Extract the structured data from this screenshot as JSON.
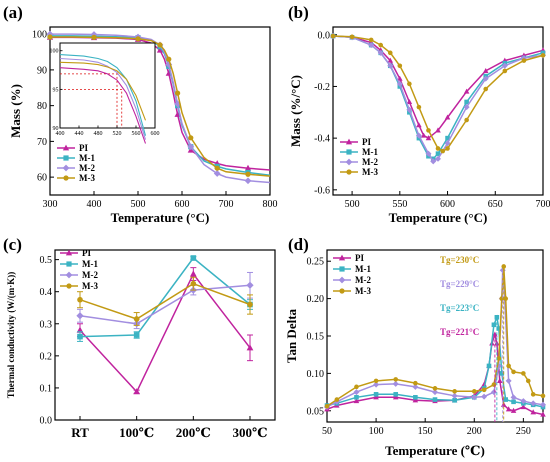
{
  "colors": {
    "PI": "#c0239e",
    "M-1": "#3bb3c3",
    "M-2": "#a28ee0",
    "M-3": "#c29a14"
  },
  "chart_data": [
    {
      "label": "(a)",
      "type": "line",
      "xlabel": "Temperature (°C)",
      "ylabel": "Mass (%)",
      "xlim": [
        300,
        800
      ],
      "ylim": [
        55,
        102
      ],
      "xticks": [
        "300",
        "400",
        "500",
        "600",
        "700",
        "800"
      ],
      "yticks": [
        "60",
        "70",
        "80",
        "90",
        "100"
      ],
      "legend": [
        "PI",
        "M-1",
        "M-2",
        "M-3"
      ],
      "legend_position": "bottom-left",
      "series": [
        {
          "name": "PI",
          "x": [
            300,
            350,
            400,
            450,
            500,
            530,
            550,
            560,
            570,
            580,
            590,
            600,
            620,
            650,
            680,
            700,
            750,
            800
          ],
          "y": [
            99.1,
            99.1,
            99.0,
            98.9,
            98.5,
            97.5,
            95.5,
            93.0,
            89.0,
            83.5,
            77.5,
            72.5,
            67.5,
            65.0,
            63.8,
            63.2,
            62.5,
            62.0
          ]
        },
        {
          "name": "M-1",
          "x": [
            300,
            350,
            400,
            450,
            500,
            530,
            550,
            560,
            570,
            580,
            590,
            600,
            620,
            650,
            680,
            700,
            750,
            800
          ],
          "y": [
            99.5,
            99.5,
            99.4,
            99.3,
            99.0,
            98.3,
            96.5,
            94.5,
            91.0,
            86.0,
            80.0,
            74.5,
            68.5,
            64.5,
            63.0,
            62.3,
            61.3,
            60.5
          ]
        },
        {
          "name": "M-2",
          "x": [
            300,
            350,
            400,
            450,
            500,
            530,
            550,
            560,
            570,
            580,
            590,
            600,
            620,
            650,
            680,
            700,
            750,
            800
          ],
          "y": [
            100.0,
            100.0,
            99.9,
            99.7,
            99.2,
            98.5,
            97.0,
            95.0,
            91.5,
            86.5,
            80.5,
            75.0,
            68.5,
            63.5,
            61.0,
            60.0,
            59.0,
            58.5
          ]
        },
        {
          "name": "M-3",
          "x": [
            300,
            350,
            400,
            450,
            500,
            530,
            550,
            560,
            570,
            580,
            590,
            600,
            620,
            650,
            680,
            700,
            750,
            800
          ],
          "y": [
            99.2,
            99.2,
            99.1,
            99.0,
            98.7,
            98.2,
            97.0,
            95.5,
            93.0,
            89.0,
            83.5,
            78.0,
            71.0,
            65.5,
            62.5,
            61.5,
            60.8,
            60.3
          ]
        }
      ],
      "inset": {
        "xlim": [
          400,
          600
        ],
        "ylim": [
          90,
          101
        ],
        "xticks": [
          "400",
          "440",
          "480",
          "520",
          "560",
          "600"
        ],
        "yticks": [
          "90",
          "95",
          "100"
        ],
        "reference_lines": [
          {
            "x": 520,
            "y": 97
          },
          {
            "x": 530,
            "y": 95
          }
        ],
        "series": [
          {
            "name": "PI",
            "x": [
              400,
              450,
              480,
              500,
              520,
              540,
              560,
              580
            ],
            "y": [
              97.8,
              97.6,
              97.4,
              97.0,
              96.2,
              94.5,
              91.5,
              88.0
            ]
          },
          {
            "name": "M-1",
            "x": [
              400,
              450,
              480,
              500,
              520,
              540,
              560,
              580
            ],
            "y": [
              99.5,
              99.3,
              99.0,
              98.6,
              97.8,
              96.3,
              93.5,
              89.0
            ]
          },
          {
            "name": "M-2",
            "x": [
              400,
              450,
              480,
              500,
              520,
              540,
              560,
              580
            ],
            "y": [
              99.0,
              98.8,
              98.5,
              98.0,
              97.2,
              95.5,
              92.5,
              88.5
            ]
          },
          {
            "name": "M-3",
            "x": [
              400,
              450,
              480,
              500,
              520,
              540,
              560,
              580
            ],
            "y": [
              98.5,
              98.4,
              98.2,
              97.9,
              97.4,
              96.3,
              94.2,
              91.0
            ]
          }
        ]
      }
    },
    {
      "label": "(b)",
      "type": "line",
      "xlabel": "Temperature (°C)",
      "ylabel": "Mass (%/°C)",
      "xlim": [
        480,
        700
      ],
      "ylim": [
        -0.62,
        0.03
      ],
      "xticks": [
        "500",
        "550",
        "600",
        "650",
        "700"
      ],
      "yticks": [
        "0.0",
        "-0.2",
        "-0.4",
        "-0.6"
      ],
      "legend": [
        "PI",
        "M-1",
        "M-2",
        "M-3"
      ],
      "legend_position": "bottom-left",
      "series": [
        {
          "name": "PI",
          "x": [
            480,
            500,
            520,
            530,
            540,
            550,
            560,
            570,
            575,
            580,
            590,
            600,
            620,
            640,
            660,
            680,
            700
          ],
          "y": [
            -0.005,
            -0.01,
            -0.03,
            -0.06,
            -0.1,
            -0.17,
            -0.26,
            -0.35,
            -0.39,
            -0.4,
            -0.37,
            -0.32,
            -0.22,
            -0.14,
            -0.1,
            -0.08,
            -0.06
          ]
        },
        {
          "name": "M-1",
          "x": [
            480,
            500,
            520,
            530,
            540,
            550,
            560,
            570,
            580,
            585,
            590,
            600,
            620,
            640,
            660,
            680,
            700
          ],
          "y": [
            -0.005,
            -0.01,
            -0.04,
            -0.07,
            -0.12,
            -0.2,
            -0.3,
            -0.4,
            -0.47,
            -0.48,
            -0.46,
            -0.4,
            -0.26,
            -0.16,
            -0.11,
            -0.09,
            -0.07
          ]
        },
        {
          "name": "M-2",
          "x": [
            480,
            500,
            520,
            530,
            540,
            550,
            560,
            570,
            580,
            585,
            590,
            600,
            620,
            640,
            660,
            680,
            700
          ],
          "y": [
            -0.005,
            -0.01,
            -0.04,
            -0.07,
            -0.12,
            -0.19,
            -0.29,
            -0.39,
            -0.46,
            -0.49,
            -0.48,
            -0.42,
            -0.28,
            -0.17,
            -0.12,
            -0.09,
            -0.08
          ]
        },
        {
          "name": "M-3",
          "x": [
            480,
            500,
            520,
            530,
            540,
            550,
            560,
            570,
            580,
            590,
            595,
            600,
            620,
            640,
            660,
            680,
            700
          ],
          "y": [
            -0.005,
            -0.008,
            -0.02,
            -0.04,
            -0.07,
            -0.12,
            -0.19,
            -0.28,
            -0.37,
            -0.44,
            -0.45,
            -0.44,
            -0.33,
            -0.21,
            -0.14,
            -0.1,
            -0.08
          ]
        }
      ]
    },
    {
      "label": "(c)",
      "type": "line",
      "xlabel": "",
      "ylabel": "Thermal conductivity (W/(m·K))",
      "categories": [
        "RT",
        "100℃",
        "200℃",
        "300℃"
      ],
      "ylim": [
        0.0,
        0.53
      ],
      "yticks": [
        "0.0",
        "0.1",
        "0.2",
        "0.3",
        "0.4",
        "0.5"
      ],
      "legend": [
        "PI",
        "M-1",
        "M-2",
        "M-3"
      ],
      "legend_position": "top-left",
      "series": [
        {
          "name": "PI",
          "values": [
            0.28,
            0.088,
            0.455,
            0.225
          ],
          "errors": [
            0.02,
            0.005,
            0.02,
            0.04
          ]
        },
        {
          "name": "M-1",
          "values": [
            0.26,
            0.265,
            0.505,
            0.36
          ],
          "errors": [
            0.015,
            0.01,
            0.005,
            0.015
          ]
        },
        {
          "name": "M-2",
          "values": [
            0.325,
            0.3,
            0.405,
            0.42
          ],
          "errors": [
            0.02,
            0.015,
            0.015,
            0.04
          ]
        },
        {
          "name": "M-3",
          "values": [
            0.375,
            0.315,
            0.425,
            0.36
          ],
          "errors": [
            0.025,
            0.02,
            0.02,
            0.03
          ]
        }
      ]
    },
    {
      "label": "(d)",
      "type": "line",
      "xlabel": "Temperature (℃)",
      "ylabel": "Tan Delta",
      "xlim": [
        50,
        270
      ],
      "ylim": [
        0.035,
        0.265
      ],
      "xticks": [
        "50",
        "100",
        "150",
        "200",
        "250"
      ],
      "yticks": [
        "0.05",
        "0.10",
        "0.15",
        "0.20",
        "0.25"
      ],
      "legend": [
        "PI",
        "M-1",
        "M-2",
        "M-3"
      ],
      "legend_position": "top-left",
      "annotations": [
        {
          "text": "Tg=230°C",
          "series": "M-3",
          "x": 230
        },
        {
          "text": "Tg=229°C",
          "series": "M-2",
          "x": 229
        },
        {
          "text": "Tg=223°C",
          "series": "M-1",
          "x": 223
        },
        {
          "text": "Tg=221°C",
          "series": "PI",
          "x": 221
        }
      ],
      "series": [
        {
          "name": "PI",
          "x": [
            50,
            60,
            80,
            100,
            120,
            140,
            160,
            180,
            200,
            210,
            215,
            218,
            221,
            223,
            226,
            230,
            235,
            240,
            250,
            260,
            270
          ],
          "y": [
            0.052,
            0.057,
            0.063,
            0.068,
            0.068,
            0.064,
            0.063,
            0.064,
            0.07,
            0.085,
            0.11,
            0.14,
            0.152,
            0.14,
            0.09,
            0.058,
            0.052,
            0.05,
            0.055,
            0.048,
            0.045
          ]
        },
        {
          "name": "M-1",
          "x": [
            50,
            60,
            80,
            100,
            120,
            140,
            160,
            180,
            200,
            210,
            215,
            220,
            223,
            225,
            228,
            232,
            240,
            250,
            260,
            270
          ],
          "y": [
            0.057,
            0.06,
            0.068,
            0.072,
            0.072,
            0.068,
            0.065,
            0.064,
            0.068,
            0.08,
            0.11,
            0.165,
            0.175,
            0.16,
            0.1,
            0.065,
            0.062,
            0.06,
            0.058,
            0.055
          ]
        },
        {
          "name": "M-2",
          "x": [
            50,
            60,
            80,
            100,
            120,
            140,
            160,
            180,
            200,
            210,
            220,
            225,
            228,
            229,
            231,
            235,
            240,
            250,
            260,
            270
          ],
          "y": [
            0.055,
            0.062,
            0.075,
            0.085,
            0.086,
            0.082,
            0.075,
            0.07,
            0.068,
            0.069,
            0.075,
            0.11,
            0.2,
            0.238,
            0.2,
            0.09,
            0.068,
            0.063,
            0.06,
            0.058
          ]
        },
        {
          "name": "M-3",
          "x": [
            50,
            60,
            80,
            100,
            120,
            140,
            160,
            180,
            200,
            210,
            220,
            225,
            228,
            230,
            232,
            235,
            240,
            250,
            255,
            260,
            270
          ],
          "y": [
            0.056,
            0.065,
            0.082,
            0.09,
            0.092,
            0.087,
            0.08,
            0.076,
            0.076,
            0.078,
            0.085,
            0.12,
            0.2,
            0.243,
            0.2,
            0.11,
            0.102,
            0.1,
            0.09,
            0.072,
            0.07
          ]
        }
      ]
    }
  ]
}
